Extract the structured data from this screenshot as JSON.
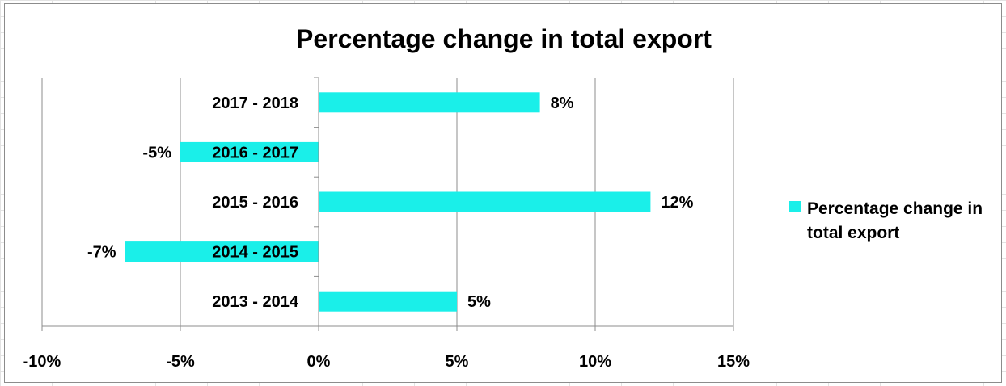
{
  "chart_data": {
    "type": "bar",
    "orientation": "horizontal",
    "title": "Percentage change in total export",
    "categories": [
      "2013 - 2014",
      "2014 - 2015",
      "2015 - 2016",
      "2016 - 2017",
      "2017 - 2018"
    ],
    "series": [
      {
        "name": "Percentage change in total export",
        "values": [
          5,
          -7,
          12,
          -5,
          8
        ],
        "labels": [
          "5%",
          "-7%",
          "12%",
          "-5%",
          "8%"
        ],
        "color": "#1aefe9"
      }
    ],
    "xlim": [
      -10,
      15
    ],
    "xticks": [
      -10,
      -5,
      0,
      5,
      10,
      15
    ],
    "xtick_labels": [
      "-10%",
      "-5%",
      "0%",
      "5%",
      "10%",
      "15%"
    ],
    "xlabel": "",
    "ylabel": "",
    "grid": true,
    "legend_position": "right",
    "legend_lines": [
      "Percentage change in",
      "total export"
    ]
  }
}
